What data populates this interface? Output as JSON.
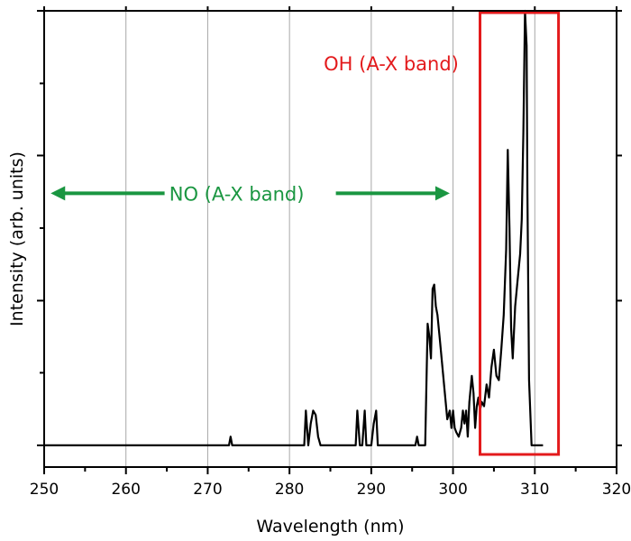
{
  "chart_data": {
    "type": "line",
    "xlabel": "Wavelength (nm)",
    "ylabel": "Intensity (arb. units)",
    "xlim": [
      250,
      320
    ],
    "ylim": [
      -0.05,
      1.0
    ],
    "x_ticks": [
      250,
      260,
      270,
      280,
      290,
      300,
      310,
      320
    ],
    "x_tick_labels": [
      "250",
      "260",
      "270",
      "280",
      "290",
      "300",
      "310",
      "320"
    ],
    "y_major_ticks": [
      0,
      0.333,
      0.667,
      1.0
    ],
    "y_minor_ticks": [
      0.167,
      0.5,
      0.833
    ],
    "y_tick_labels_shown": false,
    "grid": "vertical gridlines at major x ticks",
    "line_color": "#000000",
    "series": [
      {
        "x": [
          250,
          272.6,
          272.8,
          273,
          281.8,
          282.0,
          282.3,
          282.6,
          282.9,
          283.2,
          283.5,
          283.8,
          284.1,
          288.1,
          288.3,
          288.6,
          288.9,
          289.2,
          289.4,
          289.6,
          290.0,
          290.3,
          290.6,
          290.8,
          291.1,
          295.4,
          295.6,
          295.8,
          296.6,
          296.9,
          297.1,
          297.3,
          297.5,
          297.7,
          297.9,
          298.1,
          298.4,
          298.7,
          299.0,
          299.3,
          299.6,
          299.8,
          300.0,
          300.2,
          300.4,
          300.7,
          301.0,
          301.2,
          301.4,
          301.6,
          301.8,
          302.0,
          302.3,
          302.5,
          302.7,
          302.9,
          303.1,
          303.3,
          303.5,
          303.8,
          304.1,
          304.4,
          304.7,
          305.0,
          305.3,
          305.6,
          305.9,
          306.2,
          306.5,
          306.7,
          306.9,
          307.1,
          307.3,
          307.6,
          307.9,
          308.2,
          308.4,
          308.6,
          308.8,
          309.0,
          309.1,
          309.3,
          309.6,
          309.9,
          311.0
        ],
        "y": [
          0,
          0,
          0.02,
          0,
          0,
          0.08,
          0,
          0.05,
          0.08,
          0.07,
          0.02,
          0,
          0,
          0,
          0.08,
          0,
          0,
          0.08,
          0,
          0,
          0,
          0.05,
          0.08,
          0,
          0,
          0,
          0.02,
          0,
          0,
          0.28,
          0.25,
          0.2,
          0.36,
          0.37,
          0.32,
          0.3,
          0.24,
          0.18,
          0.12,
          0.06,
          0.08,
          0.04,
          0.08,
          0.04,
          0.03,
          0.02,
          0.04,
          0.08,
          0.05,
          0.08,
          0.02,
          0.1,
          0.16,
          0.12,
          0.04,
          0.09,
          0.11,
          0.08,
          0.1,
          0.09,
          0.14,
          0.11,
          0.18,
          0.22,
          0.16,
          0.15,
          0.22,
          0.3,
          0.45,
          0.68,
          0.5,
          0.27,
          0.2,
          0.32,
          0.38,
          0.44,
          0.52,
          0.72,
          1.0,
          0.92,
          0.58,
          0.15,
          0,
          0,
          0
        ]
      }
    ],
    "annotations": [
      {
        "label": "NO (A-X band)",
        "color": "#1a9641",
        "type": "double-arrow",
        "x_range": [
          250.8,
          299.6
        ],
        "y": 0.58
      },
      {
        "label": "OH (A-X band)",
        "color": "#e31a1c",
        "type": "box",
        "x_range": [
          303.3,
          312.9
        ],
        "y_range": [
          -0.05,
          1.0
        ]
      }
    ]
  }
}
